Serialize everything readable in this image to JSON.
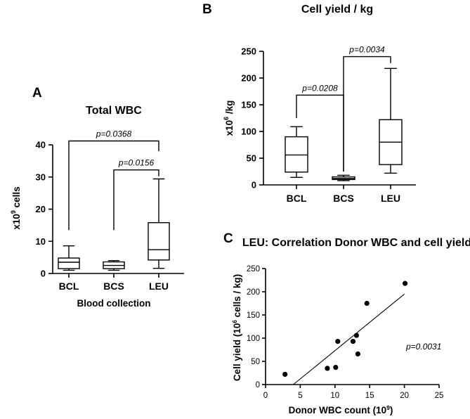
{
  "chart_data": [
    {
      "panel": "A",
      "type": "box",
      "title": "Total WBC",
      "xlabel": "Blood collection",
      "ylabel": "x10^9 cells",
      "ylabel_base": "x10",
      "ylabel_sup": "9",
      "ylabel_rest": " cells",
      "ylim": [
        0,
        40
      ],
      "yticks": [
        0,
        10,
        20,
        30,
        40
      ],
      "categories": [
        "BCL",
        "BCS",
        "LEU"
      ],
      "boxes": [
        {
          "min": 1.0,
          "q1": 1.5,
          "median": 3.5,
          "q3": 4.8,
          "max": 8.6
        },
        {
          "min": 1.0,
          "q1": 1.5,
          "median": 2.5,
          "q3": 3.6,
          "max": 4.0
        },
        {
          "min": 1.6,
          "q1": 4.2,
          "median": 7.4,
          "q3": 15.8,
          "max": 29.4
        }
      ],
      "comparisons": [
        {
          "from": 0,
          "to": 2,
          "label": "p=0.0368",
          "level": 41.2,
          "drop_from": 13.5,
          "drop_to": 38.0
        },
        {
          "from": 1,
          "to": 2,
          "label": "p=0.0156",
          "level": 32.2,
          "drop_from": 13.5,
          "drop_to": 30.2
        }
      ]
    },
    {
      "panel": "B",
      "type": "box",
      "title": "Cell yield / kg",
      "xlabel": "",
      "ylabel": "x10^6 /kg",
      "ylabel_base": "x10",
      "ylabel_sup": "6",
      "ylabel_rest": " /kg",
      "ylim": [
        0,
        250
      ],
      "yticks": [
        0,
        50,
        100,
        150,
        200,
        250
      ],
      "categories": [
        "BCL",
        "BCS",
        "LEU"
      ],
      "boxes": [
        {
          "min": 14,
          "q1": 24,
          "median": 56,
          "q3": 90,
          "max": 109
        },
        {
          "min": 8,
          "q1": 10,
          "median": 12,
          "q3": 15,
          "max": 18
        },
        {
          "min": 22,
          "q1": 38,
          "median": 80,
          "q3": 122,
          "max": 218
        }
      ],
      "comparisons": [
        {
          "from": 0,
          "to": 1,
          "label": "p=0.0208",
          "level": 168,
          "drop_from": 125,
          "drop_to": 25
        },
        {
          "from": 1,
          "to": 2,
          "label": "p=0.0034",
          "level": 240,
          "drop_from": 25,
          "drop_to": 228
        }
      ]
    },
    {
      "panel": "C",
      "type": "scatter",
      "title": "LEU: Correlation Donor WBC and cell yield",
      "xlabel": "Donor WBC count (10^9)",
      "xlabel_base": "Donor WBC count (10",
      "xlabel_sup": "9",
      "xlabel_rest": ")",
      "ylabel": "Cell yield (10^6 cells / kg)",
      "ylabel_base": "Cell yield (10",
      "ylabel_sup": "6",
      "ylabel_rest": " cells / kg)",
      "xlim": [
        0,
        25
      ],
      "ylim": [
        0,
        250
      ],
      "xticks": [
        0,
        5,
        10,
        15,
        20,
        25
      ],
      "yticks": [
        0,
        50,
        100,
        150,
        200,
        250
      ],
      "points": [
        {
          "x": 2.8,
          "y": 22
        },
        {
          "x": 8.9,
          "y": 35
        },
        {
          "x": 10.1,
          "y": 37
        },
        {
          "x": 10.4,
          "y": 93
        },
        {
          "x": 12.6,
          "y": 93
        },
        {
          "x": 13.1,
          "y": 106
        },
        {
          "x": 13.3,
          "y": 66
        },
        {
          "x": 14.6,
          "y": 175
        },
        {
          "x": 20.1,
          "y": 218
        }
      ],
      "fit": {
        "x0": 4.0,
        "y0": 0,
        "x1": 20.0,
        "y1": 195
      },
      "annotation": "p=0.0031"
    }
  ]
}
